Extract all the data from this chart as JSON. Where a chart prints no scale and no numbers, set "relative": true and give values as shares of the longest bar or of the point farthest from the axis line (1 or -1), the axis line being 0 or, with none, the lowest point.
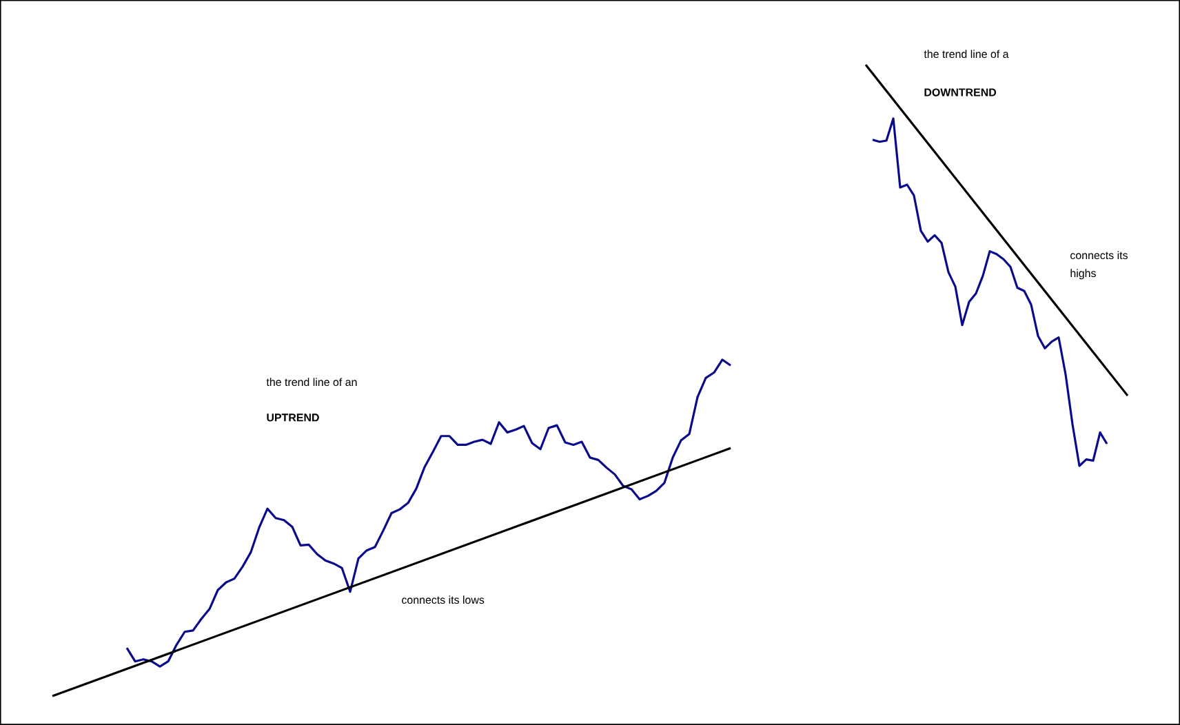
{
  "chart_data": [
    {
      "type": "line",
      "relative": true,
      "categories": [
        null,
        null,
        null,
        null,
        null,
        null,
        null,
        null,
        null,
        null,
        null,
        null,
        null,
        null,
        null,
        null,
        null,
        null,
        null,
        null,
        null,
        null,
        null,
        null,
        null,
        null,
        null,
        null,
        null,
        null,
        null,
        null,
        null,
        null,
        null,
        null,
        null,
        null,
        null,
        null,
        null,
        null,
        null,
        null,
        null,
        null,
        null,
        null,
        null,
        null,
        null,
        null,
        null,
        null,
        null,
        null,
        null,
        null,
        null,
        null,
        null,
        null,
        null,
        null,
        null,
        null,
        null,
        null,
        null,
        null,
        null,
        null,
        null,
        null,
        null,
        null,
        null,
        null,
        null,
        null,
        null,
        null,
        null
      ],
      "series": [
        {
          "color": "#0a0a8c",
          "values": [
            null,
            null,
            null,
            null,
            null,
            null,
            null,
            null,
            null,
            0.143,
            0.103,
            0.109,
            0.103,
            0.088,
            0.103,
            0.152,
            0.191,
            0.195,
            0.229,
            0.259,
            0.315,
            0.338,
            0.349,
            0.385,
            0.428,
            0.501,
            0.557,
            0.529,
            0.523,
            0.503,
            0.448,
            0.45,
            0.422,
            0.403,
            0.394,
            0.381,
            0.31,
            0.409,
            0.433,
            0.443,
            0.492,
            0.544,
            0.555,
            0.574,
            0.617,
            0.681,
            0.726,
            0.773,
            0.773,
            0.747,
            0.747,
            0.756,
            0.762,
            0.75,
            0.814,
            0.784,
            0.792,
            0.803,
            0.752,
            0.734,
            0.797,
            0.805,
            0.754,
            0.747,
            0.756,
            0.709,
            0.702,
            0.679,
            0.659,
            0.625,
            0.615,
            0.585,
            0.595,
            0.61,
            0.634,
            0.709,
            0.76,
            0.779,
            0.889,
            0.946,
            0.962,
            1,
            0.983
          ]
        },
        {
          "color": "#000000",
          "values": [
            0,
            null,
            null,
            null,
            null,
            null,
            null,
            null,
            null,
            null,
            null,
            null,
            null,
            null,
            null,
            null,
            null,
            null,
            null,
            null,
            null,
            null,
            null,
            null,
            null,
            null,
            null,
            null,
            null,
            null,
            null,
            null,
            null,
            null,
            null,
            null,
            null,
            null,
            null,
            null,
            null,
            null,
            null,
            null,
            null,
            null,
            null,
            null,
            null,
            null,
            null,
            null,
            null,
            null,
            null,
            null,
            null,
            null,
            null,
            null,
            null,
            null,
            null,
            null,
            null,
            null,
            null,
            null,
            null,
            null,
            null,
            null,
            null,
            null,
            null,
            null,
            null,
            null,
            null,
            null,
            null,
            null,
            0.737
          ]
        }
      ],
      "annotations": [
        "the trend line of an",
        "**UPTREND**",
        "connects its lows"
      ]
    },
    {
      "type": "line",
      "relative": true,
      "categories": [
        null,
        null,
        null,
        null,
        null,
        null,
        null,
        null,
        null,
        null,
        null,
        null,
        null,
        null,
        null,
        null,
        null,
        null,
        null,
        null,
        null,
        null,
        null,
        null,
        null,
        null,
        null,
        null,
        null,
        null,
        null,
        null,
        null,
        null,
        null,
        null,
        null,
        null,
        null
      ],
      "series": [
        {
          "color": "#0a0a8c",
          "values": [
            null,
            0.813,
            0.808,
            0.811,
            0.866,
            0.694,
            0.701,
            0.674,
            0.586,
            0.559,
            0.575,
            0.556,
            0.483,
            0.447,
            0.351,
            0.409,
            0.43,
            0.474,
            0.535,
            0.528,
            0.515,
            0.496,
            0.444,
            0.436,
            0.402,
            0.324,
            0.293,
            0.31,
            0.32,
            0.228,
            0.104,
            0,
            0.016,
            0.013,
            0.083,
            0.055,
            null,
            null,
            null
          ]
        },
        {
          "color": "#000000",
          "values": [
            1,
            null,
            null,
            null,
            null,
            null,
            null,
            null,
            null,
            null,
            null,
            null,
            null,
            null,
            null,
            null,
            null,
            null,
            null,
            null,
            null,
            null,
            null,
            null,
            null,
            null,
            null,
            null,
            null,
            null,
            null,
            null,
            null,
            null,
            null,
            null,
            null,
            null,
            0.175
          ]
        }
      ],
      "annotations": [
        "the trend line of a",
        "**DOWNTREND**",
        "connects its",
        "highs"
      ]
    }
  ]
}
